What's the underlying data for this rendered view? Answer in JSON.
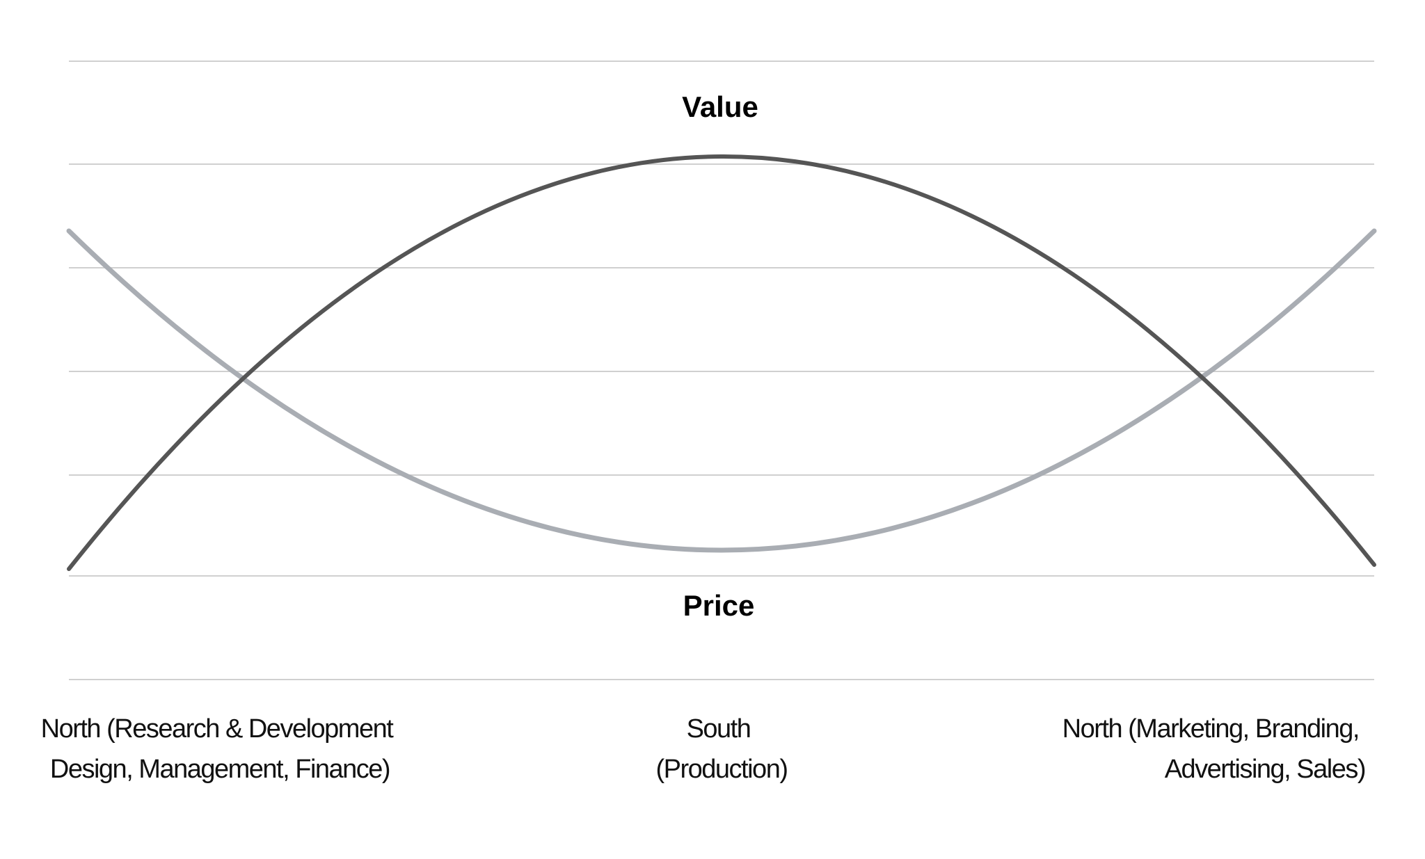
{
  "top_label": "Value",
  "bottom_label": "Price",
  "regions": [
    {
      "lines": [
        "North (Research & Development",
        "Design, Management, Finance)"
      ]
    },
    {
      "lines": [
        "South",
        "(Production)"
      ]
    },
    {
      "lines": [
        "North (Marketing, Branding,",
        "Advertising, Sales)"
      ]
    }
  ]
}
